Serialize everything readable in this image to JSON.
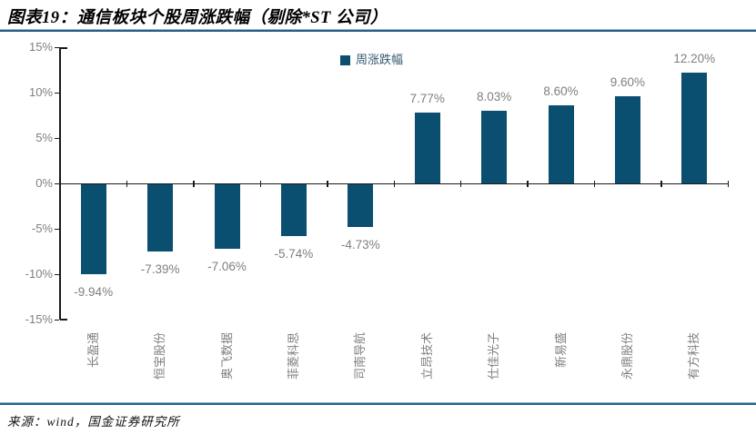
{
  "header": {
    "title": "图表19：通信板块个股周涨跌幅（剔除*ST 公司）"
  },
  "legend": {
    "label": "周涨跌幅"
  },
  "footer": {
    "source": "来源：wind，国金证券研究所"
  },
  "colors": {
    "bar": "#0A4E70",
    "rule": "#245E8C",
    "axis": "#1A1A1A",
    "label_gray": "#7F7F7F",
    "legend_text": "#33586E"
  },
  "chart_data": {
    "type": "bar",
    "title": "图表19：通信板块个股周涨跌幅（剔除*ST 公司）",
    "legend": [
      "周涨跌幅"
    ],
    "legend_position": "top",
    "categories": [
      "长盈通",
      "恒宝股份",
      "奥飞数据",
      "菲菱科思",
      "司南导航",
      "立昂技术",
      "仕佳光子",
      "新易盛",
      "永鼎股份",
      "有方科技"
    ],
    "values": [
      -9.94,
      -7.39,
      -7.06,
      -5.74,
      -4.73,
      7.77,
      8.03,
      8.6,
      9.6,
      12.2
    ],
    "value_labels": [
      "-9.94%",
      "-7.39%",
      "-7.06%",
      "-5.74%",
      "-4.73%",
      "7.77%",
      "8.03%",
      "8.60%",
      "9.60%",
      "12.20%"
    ],
    "ylim": [
      -15,
      15
    ],
    "ytick_step": 5,
    "ytick_labels": [
      "15%",
      "10%",
      "5%",
      "0%",
      "-5%",
      "-10%",
      "-15%"
    ],
    "grid": false,
    "xlabel": "",
    "ylabel": ""
  }
}
